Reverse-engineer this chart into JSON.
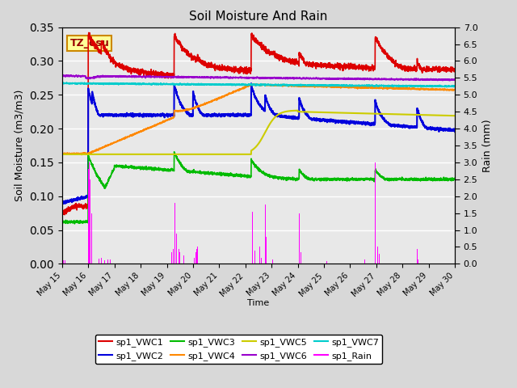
{
  "title": "Soil Moisture And Rain",
  "xlabel": "Time",
  "ylabel_left": "Soil Moisture (m3/m3)",
  "ylabel_right": "Rain (mm)",
  "annotation": "TZ_osu",
  "ylim_left": [
    0.0,
    0.35
  ],
  "ylim_right": [
    0.0,
    7.0
  ],
  "x_ticks_labels": [
    "May 15",
    "May 16",
    "May 17",
    "May 18",
    "May 19",
    "May 20",
    "May 21",
    "May 22",
    "May 23",
    "May 24",
    "May 25",
    "May 26",
    "May 27",
    "May 28",
    "May 29",
    "May 30"
  ],
  "colors": {
    "VWC1": "#dd0000",
    "VWC2": "#0000dd",
    "VWC3": "#00bb00",
    "VWC4": "#ff8800",
    "VWC5": "#cccc00",
    "VWC6": "#9900cc",
    "VWC7": "#00cccc",
    "Rain": "#ff00ff"
  },
  "legend_labels": [
    "sp1_VWC1",
    "sp1_VWC2",
    "sp1_VWC3",
    "sp1_VWC4",
    "sp1_VWC5",
    "sp1_VWC6",
    "sp1_VWC7",
    "sp1_Rain"
  ]
}
